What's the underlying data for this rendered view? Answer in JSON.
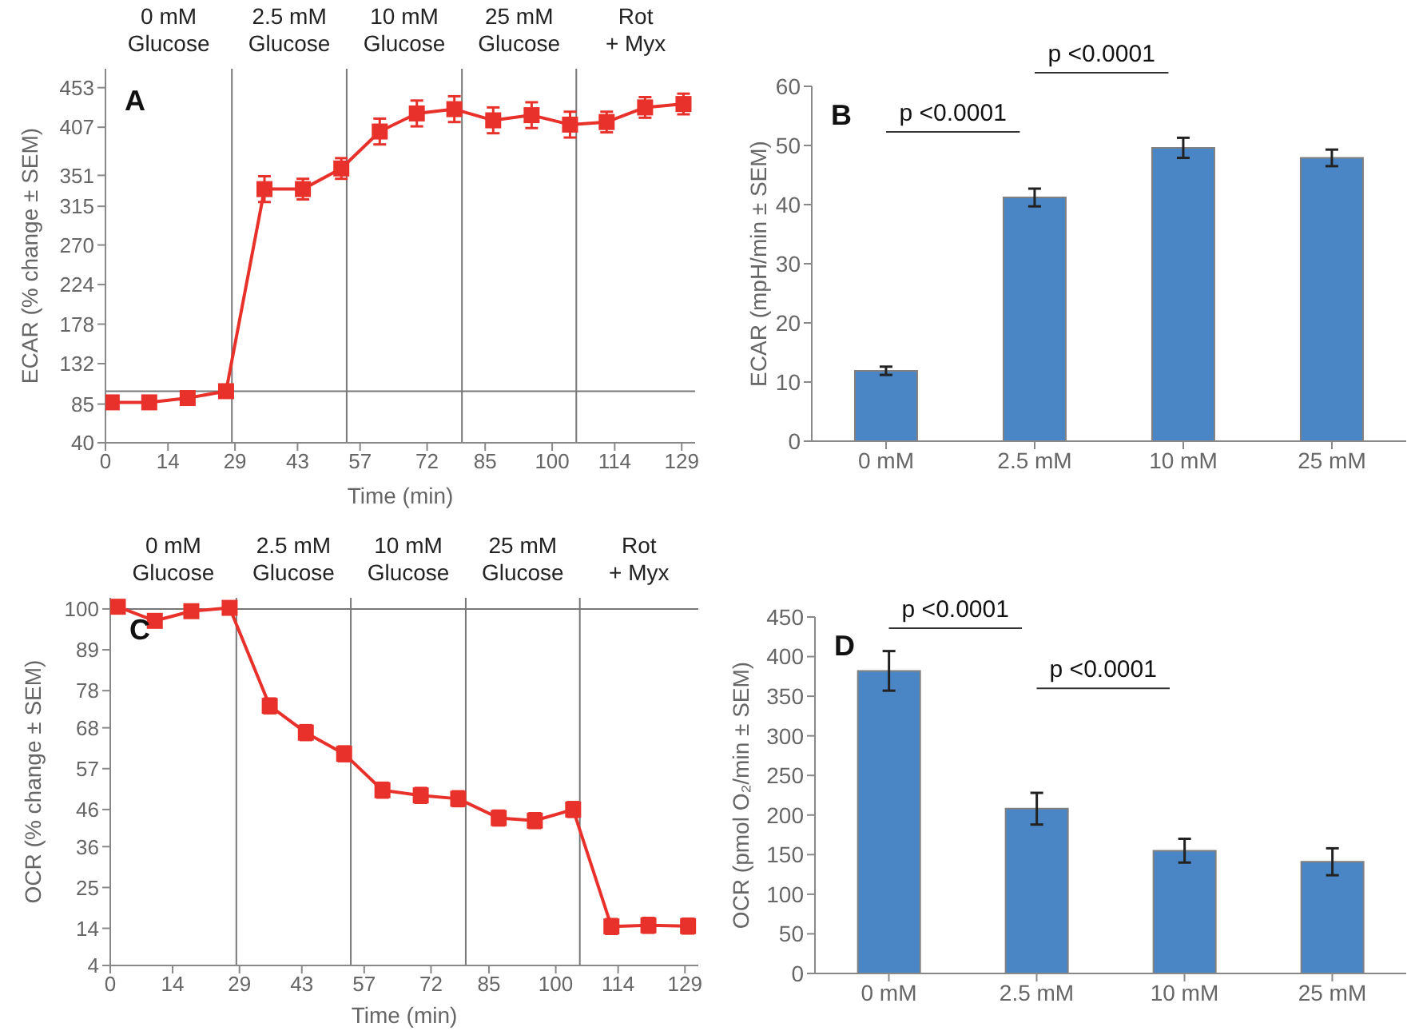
{
  "chart_data": [
    {
      "type": "line",
      "xlabel": "Time (min)",
      "ylabel": "ECAR (% change ± SEM)",
      "marker": "square",
      "x": [
        1.4,
        9.8,
        18.4,
        27,
        35.6,
        44.2,
        52.8,
        61.4,
        69.7,
        78.1,
        86.8,
        95.4,
        104,
        112.2,
        120.8,
        129.4
      ],
      "series": [
        {
          "color": "#e8312a",
          "values": [
            87,
            87,
            92,
            100,
            335,
            335,
            359,
            402,
            423,
            428,
            415,
            421,
            410,
            413,
            430,
            434
          ],
          "errors": [
            5,
            5,
            5,
            5,
            15,
            12,
            12,
            15,
            15,
            15,
            15,
            15,
            15,
            12,
            12,
            12
          ]
        }
      ],
      "xlim": [
        0,
        132
      ],
      "xticks": [
        0,
        14,
        29,
        43,
        57,
        72,
        85,
        100,
        114,
        129
      ],
      "ylim": [
        40,
        475
      ],
      "yticks": [
        40,
        85,
        132,
        178,
        224,
        270,
        315,
        351,
        407,
        453
      ],
      "ref_lines": [
        {
          "axis": "y",
          "value": 100,
          "color": "#777777"
        },
        {
          "axis": "x",
          "value": 28.3,
          "color": "#777777"
        },
        {
          "axis": "x",
          "value": 54,
          "color": "#777777"
        },
        {
          "axis": "x",
          "value": 79.8,
          "color": "#777777"
        },
        {
          "axis": "x",
          "value": 105.4,
          "color": "#777777"
        }
      ],
      "annotations": [
        "A",
        "0 mM\nGlucose",
        "2.5 mM\nGlucose",
        "10 mM\nGlucose",
        "25 mM\nGlucose",
        "Rot\n+ Myx"
      ]
    },
    {
      "type": "bar",
      "ylabel": "ECAR (mpH/min ± SEM)",
      "categories": [
        "0 mM",
        "2.5 mM",
        "10 mM",
        "25 mM"
      ],
      "values": [
        11.9,
        41.2,
        49.6,
        47.9
      ],
      "errors": [
        0.7,
        1.5,
        1.7,
        1.4
      ],
      "color": "#4a86c5",
      "ylim": [
        0,
        60
      ],
      "yticks": [
        0,
        10,
        20,
        30,
        40,
        50,
        60
      ],
      "annotations": [
        "B",
        "p <0.0001",
        "p <0.0001"
      ]
    },
    {
      "type": "line",
      "xlabel": "Time (min)",
      "ylabel": "OCR (% change ± SEM)",
      "marker": "square",
      "x": [
        1.7,
        10,
        18.2,
        26.8,
        35.8,
        43.9,
        52.5,
        61.1,
        69.7,
        78.1,
        87.2,
        95.3,
        103.9,
        112.5,
        120.8,
        129.7
      ],
      "series": [
        {
          "color": "#e8312a",
          "values": [
            100.6,
            96.8,
            99.4,
            100.3,
            73.9,
            66.7,
            61,
            51.2,
            49.8,
            48.9,
            43.7,
            43,
            46,
            14.5,
            14.8,
            14.6
          ],
          "errors": [
            1,
            1,
            1,
            1,
            2,
            2,
            2,
            2,
            2,
            2,
            2,
            2,
            2,
            2,
            2,
            2
          ]
        }
      ],
      "xlim": [
        0,
        132
      ],
      "xticks": [
        0,
        14,
        29,
        43,
        57,
        72,
        85,
        100,
        114,
        129
      ],
      "ylim": [
        4,
        103
      ],
      "yticks": [
        4,
        14,
        25,
        36,
        46,
        57,
        68,
        78,
        89,
        100
      ],
      "ref_lines": [
        {
          "axis": "y",
          "value": 100,
          "color": "#777777"
        },
        {
          "axis": "x",
          "value": 28.3,
          "color": "#777777"
        },
        {
          "axis": "x",
          "value": 54,
          "color": "#777777"
        },
        {
          "axis": "x",
          "value": 79.8,
          "color": "#777777"
        },
        {
          "axis": "x",
          "value": 105.4,
          "color": "#777777"
        }
      ],
      "annotations": [
        "C",
        "0 mM\nGlucose",
        "2.5 mM\nGlucose",
        "10 mM\nGlucose",
        "25 mM\nGlucose",
        "Rot\n+ Myx"
      ]
    },
    {
      "type": "bar",
      "ylabel": "OCR (pmol O₂/min ± SEM)",
      "categories": [
        "0 mM",
        "2.5 mM",
        "10 mM",
        "25 mM"
      ],
      "values": [
        382,
        208,
        155,
        141
      ],
      "errors": [
        25,
        20,
        15,
        17
      ],
      "color": "#4a86c5",
      "ylim": [
        0,
        450
      ],
      "yticks": [
        0,
        50,
        100,
        150,
        200,
        250,
        300,
        350,
        400,
        450
      ],
      "annotations": [
        "D",
        "p <0.0001",
        "p <0.0001"
      ]
    }
  ]
}
